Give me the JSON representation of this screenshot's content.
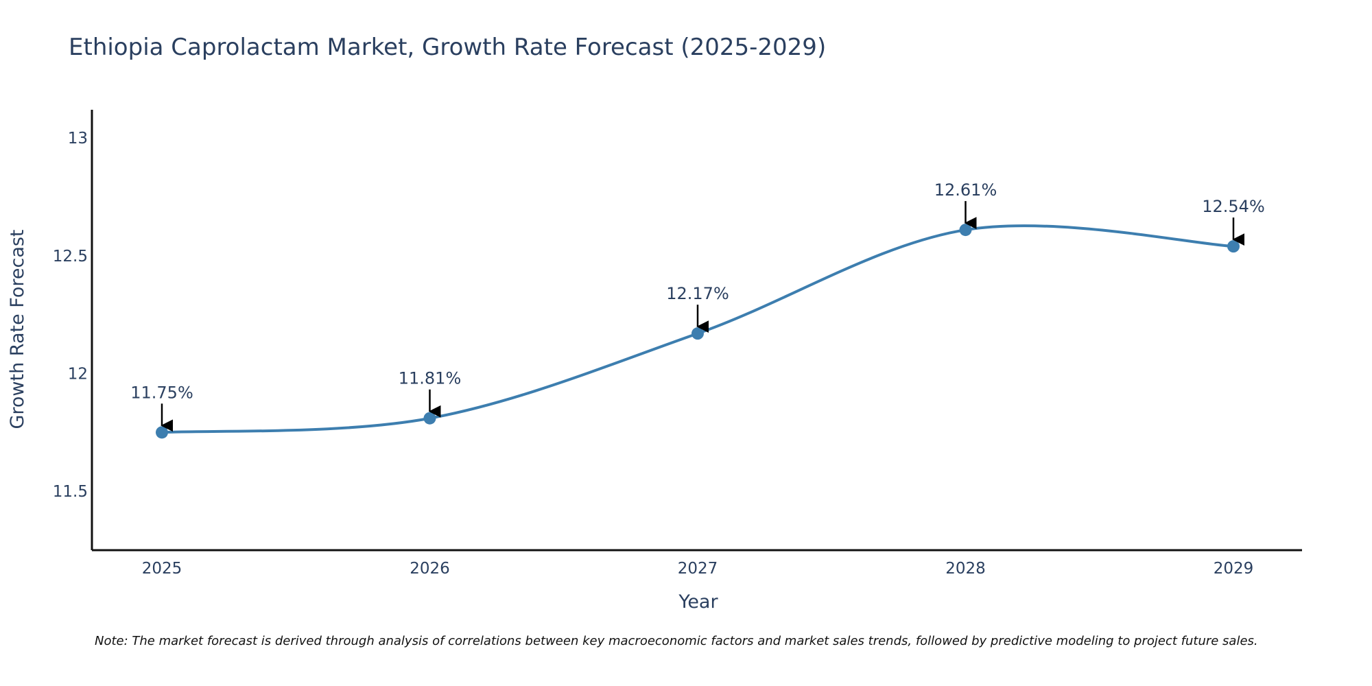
{
  "chart_data": {
    "type": "line",
    "title": "Ethiopia Caprolactam Market, Growth Rate Forecast (2025-2029)",
    "xlabel": "Year",
    "ylabel": "Growth Rate Forecast",
    "categories": [
      "2025",
      "2026",
      "2027",
      "2028",
      "2029"
    ],
    "series": [
      {
        "name": "Growth Rate Forecast",
        "values": [
          11.75,
          11.81,
          12.17,
          12.61,
          12.54
        ],
        "labels": [
          "11.75%",
          "11.81%",
          "12.17%",
          "12.61%",
          "12.54%"
        ],
        "color": "#3d7eaf"
      }
    ],
    "ylim": [
      11.25,
      13.12
    ],
    "yticks": [
      11.5,
      12,
      12.5,
      13
    ],
    "ytick_labels": [
      "11.5",
      "12",
      "12.5",
      "13"
    ],
    "grid": false,
    "line_shape": "spline"
  },
  "note": "Note: The market forecast is derived through analysis of correlations between key macroeconomic factors and market sales trends, followed by predictive modeling to project future sales."
}
